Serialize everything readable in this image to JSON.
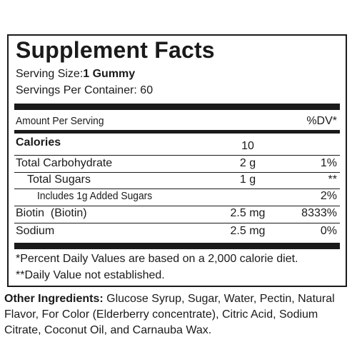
{
  "facts": {
    "title": "Supplement Facts",
    "serving_size_label": "Serving Size:",
    "serving_size_value": "1 Gummy",
    "servings_per_container": "Servings Per Container: 60",
    "amount_per_serving": "Amount Per Serving",
    "dv_header": "%DV*",
    "rows": [
      {
        "name": "Calories",
        "amount": "10",
        "dv": ""
      },
      {
        "name": "Total Carbohydrate",
        "amount": "2 g",
        "dv": "1%"
      },
      {
        "name": "Total Sugars",
        "amount": "1 g",
        "dv": "**"
      },
      {
        "name": "Includes 1g Added Sugars",
        "amount": "",
        "dv": "2%"
      },
      {
        "name": "Biotin  (Biotin)",
        "amount": "2.5 mg",
        "dv": "8333%"
      },
      {
        "name": "Sodium",
        "amount": "2.5 mg",
        "dv": "0%"
      }
    ],
    "footnote_1": "*Percent Daily Values are based on a 2,000 calorie diet.",
    "footnote_2": "**Daily Value not established."
  },
  "other_ingredients": {
    "label": "Other Ingredients:",
    "text": " Glucose Syrup, Sugar, Water, Pectin, Natural Flavor, For Color (Elderberry concentrate), Citric Acid, Sodium Citrate, Coconut Oil, and Carnauba Wax."
  }
}
